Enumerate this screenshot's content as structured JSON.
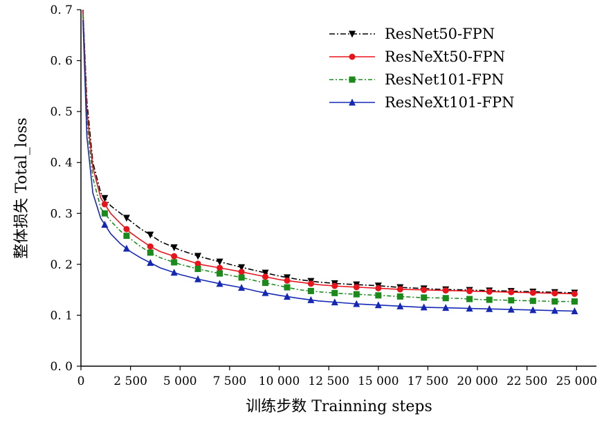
{
  "chart_data": {
    "type": "line",
    "title": "",
    "xlabel": "训练步数 Trainning steps",
    "ylabel": "整体损失 Total_loss",
    "xlim": [
      0,
      26000
    ],
    "ylim": [
      0.0,
      0.7
    ],
    "x_ticks": [
      0,
      2500,
      5000,
      7500,
      10000,
      12500,
      15000,
      17500,
      20000,
      22500,
      25000
    ],
    "x_tick_labels": [
      "0",
      "2 500",
      "5 000",
      "7 500",
      "10 000",
      "12 500",
      "15 000",
      "17 500",
      "20 000",
      "22 500",
      "25 000"
    ],
    "y_ticks": [
      0.0,
      0.1,
      0.2,
      0.3,
      0.4,
      0.5,
      0.6,
      0.7
    ],
    "y_tick_labels": [
      "0. 0",
      "0. 1",
      "0. 2",
      "0. 3",
      "0. 4",
      "0. 5",
      "0. 6",
      "0. 7"
    ],
    "grid": false,
    "legend_position": "top-right",
    "x": [
      100,
      300,
      600,
      1000,
      1500,
      2000,
      2500,
      3000,
      3500,
      4000,
      5000,
      6000,
      7000,
      8000,
      9000,
      10000,
      11000,
      12000,
      13000,
      14000,
      15000,
      16000,
      17000,
      18000,
      19000,
      20000,
      21000,
      22000,
      23000,
      24000,
      25000
    ],
    "series": [
      {
        "name": "ResNet50-FPN",
        "color": "#000000",
        "dash": "8,3,2,3",
        "marker": "triangle-down",
        "values": [
          0.7,
          0.52,
          0.4,
          0.34,
          0.315,
          0.3,
          0.285,
          0.27,
          0.258,
          0.245,
          0.228,
          0.215,
          0.205,
          0.195,
          0.186,
          0.177,
          0.17,
          0.165,
          0.162,
          0.16,
          0.158,
          0.155,
          0.153,
          0.151,
          0.15,
          0.149,
          0.148,
          0.147,
          0.146,
          0.145,
          0.144
        ]
      },
      {
        "name": "ResNeXt50-FPN",
        "color": "#e8141b",
        "dash": "",
        "marker": "circle",
        "values": [
          0.7,
          0.5,
          0.39,
          0.33,
          0.3,
          0.28,
          0.262,
          0.248,
          0.235,
          0.225,
          0.212,
          0.2,
          0.193,
          0.186,
          0.178,
          0.17,
          0.165,
          0.16,
          0.157,
          0.155,
          0.153,
          0.151,
          0.15,
          0.149,
          0.148,
          0.147,
          0.146,
          0.145,
          0.144,
          0.143,
          0.142
        ]
      },
      {
        "name": "ResNet101-FPN",
        "color": "#1a8a1a",
        "dash": "6,3,2,3",
        "marker": "square",
        "values": [
          0.69,
          0.48,
          0.37,
          0.31,
          0.285,
          0.265,
          0.25,
          0.235,
          0.223,
          0.213,
          0.2,
          0.19,
          0.182,
          0.175,
          0.166,
          0.158,
          0.15,
          0.146,
          0.143,
          0.141,
          0.139,
          0.137,
          0.135,
          0.134,
          0.133,
          0.131,
          0.13,
          0.129,
          0.128,
          0.127,
          0.127
        ]
      },
      {
        "name": "ResNeXt101-FPN",
        "color": "#1428b4",
        "dash": "",
        "marker": "triangle-up",
        "values": [
          0.68,
          0.45,
          0.34,
          0.29,
          0.26,
          0.24,
          0.225,
          0.213,
          0.203,
          0.193,
          0.18,
          0.17,
          0.162,
          0.155,
          0.146,
          0.139,
          0.133,
          0.128,
          0.125,
          0.122,
          0.12,
          0.118,
          0.116,
          0.115,
          0.114,
          0.113,
          0.112,
          0.111,
          0.11,
          0.109,
          0.108
        ]
      }
    ],
    "marker_x": [
      1200,
      2300,
      3500,
      4700,
      5900,
      7000,
      8100,
      9300,
      10400,
      11600,
      12800,
      13900,
      15000,
      16100,
      17300,
      18400,
      19600,
      20600,
      21700,
      22800,
      23900,
      24900
    ]
  }
}
